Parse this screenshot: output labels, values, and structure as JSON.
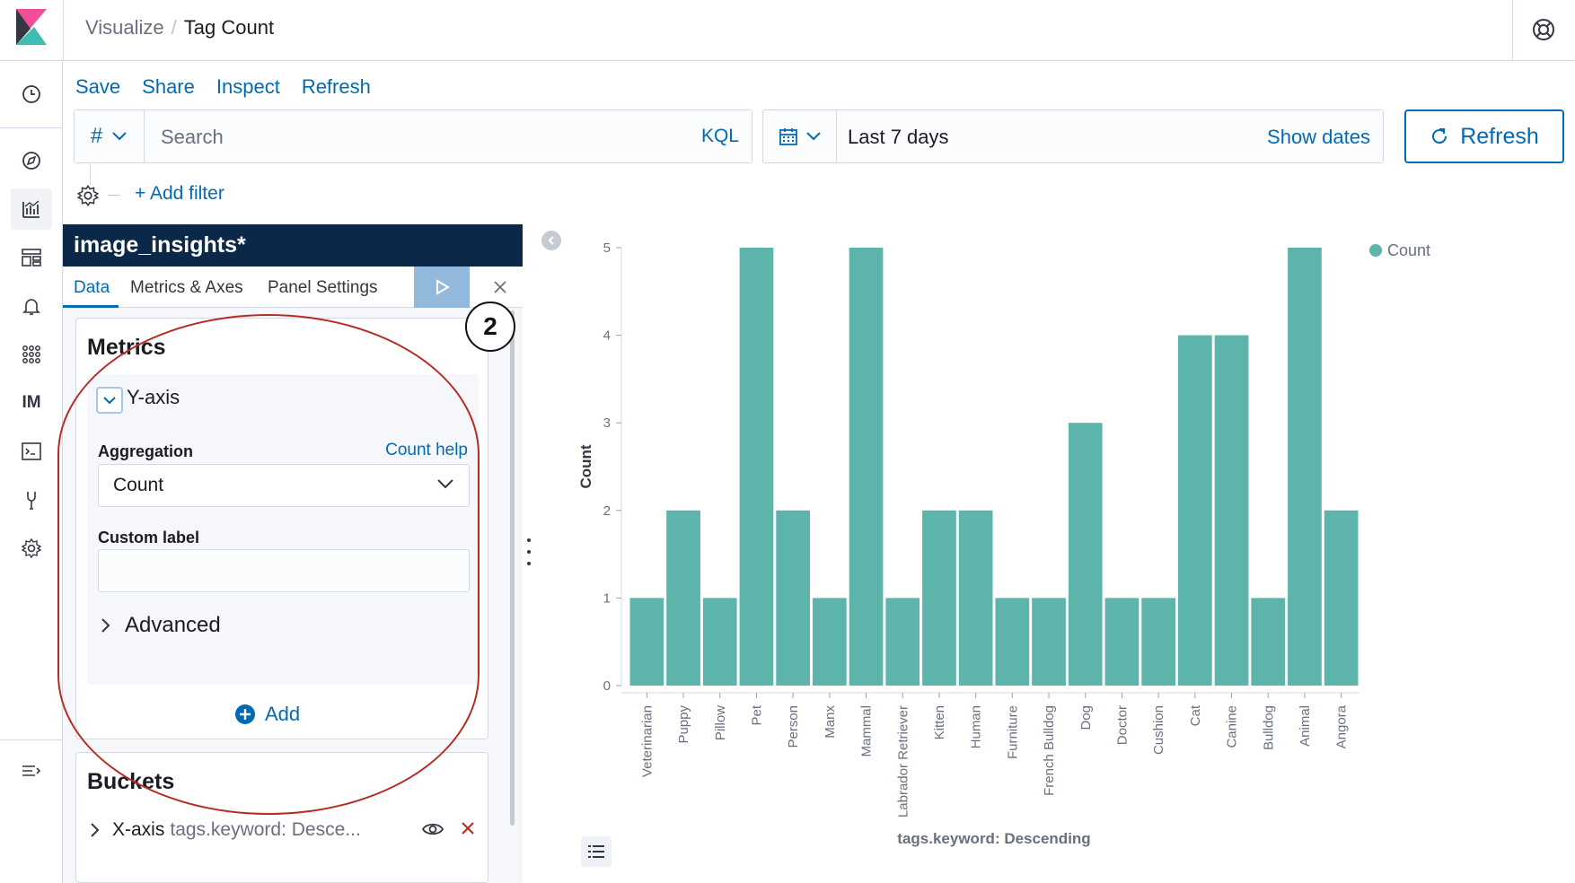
{
  "header": {
    "crumb_root": "Visualize",
    "crumb_separator": "/",
    "crumb_current": "Tag Count"
  },
  "nav": {
    "items": [
      "clock-icon",
      "compass-icon",
      "visualize-icon",
      "dashboard-icon",
      "bell-icon",
      "apps-icon",
      "IM",
      "console-icon",
      "wrench-icon",
      "gear-icon",
      "collapse-menu-icon"
    ]
  },
  "topmenu": {
    "save": "Save",
    "share": "Share",
    "inspect": "Inspect",
    "refresh": "Refresh"
  },
  "query": {
    "lang_symbol": "#",
    "placeholder": "Search",
    "kql": "KQL"
  },
  "date": {
    "value": "Last 7 days",
    "show_dates": "Show dates"
  },
  "refresh_button": "Refresh",
  "filter": {
    "add_filter": "+ Add filter"
  },
  "editor": {
    "index_pattern": "image_insights*",
    "tabs": [
      "Data",
      "Metrics & Axes",
      "Panel Settings"
    ],
    "metrics": {
      "title": "Metrics",
      "yaxis_label": "Y-axis",
      "aggregation_label": "Aggregation",
      "help_link": "Count help",
      "aggregation_value": "Count",
      "custom_label": "Custom label",
      "custom_label_value": "",
      "advanced": "Advanced",
      "add": "Add"
    },
    "buckets": {
      "title": "Buckets",
      "xaxis_label": "X-axis",
      "xaxis_sub": "tags.keyword: Desce..."
    }
  },
  "annotation": {
    "number": "2"
  },
  "colors": {
    "accent": "#006bb4",
    "bar": "#5db4ab",
    "annotation": "#b52c25",
    "title_bg": "#0b2849"
  },
  "chart_data": {
    "type": "bar",
    "categories": [
      "Veterinarian",
      "Puppy",
      "Pillow",
      "Pet",
      "Person",
      "Manx",
      "Mammal",
      "Labrador Retriever",
      "Kitten",
      "Human",
      "Furniture",
      "French Bulldog",
      "Dog",
      "Doctor",
      "Cushion",
      "Cat",
      "Canine",
      "Bulldog",
      "Animal",
      "Angora"
    ],
    "values": [
      1,
      2,
      1,
      5,
      2,
      1,
      5,
      1,
      2,
      2,
      1,
      1,
      3,
      1,
      1,
      4,
      4,
      1,
      5,
      2
    ],
    "series_name": "Count",
    "xlabel": "tags.keyword: Descending",
    "ylabel": "Count",
    "ylim": [
      0,
      5
    ],
    "yticks": [
      "0",
      "1",
      "2",
      "3",
      "4",
      "5"
    ],
    "legend": "top-right",
    "grid": false
  }
}
